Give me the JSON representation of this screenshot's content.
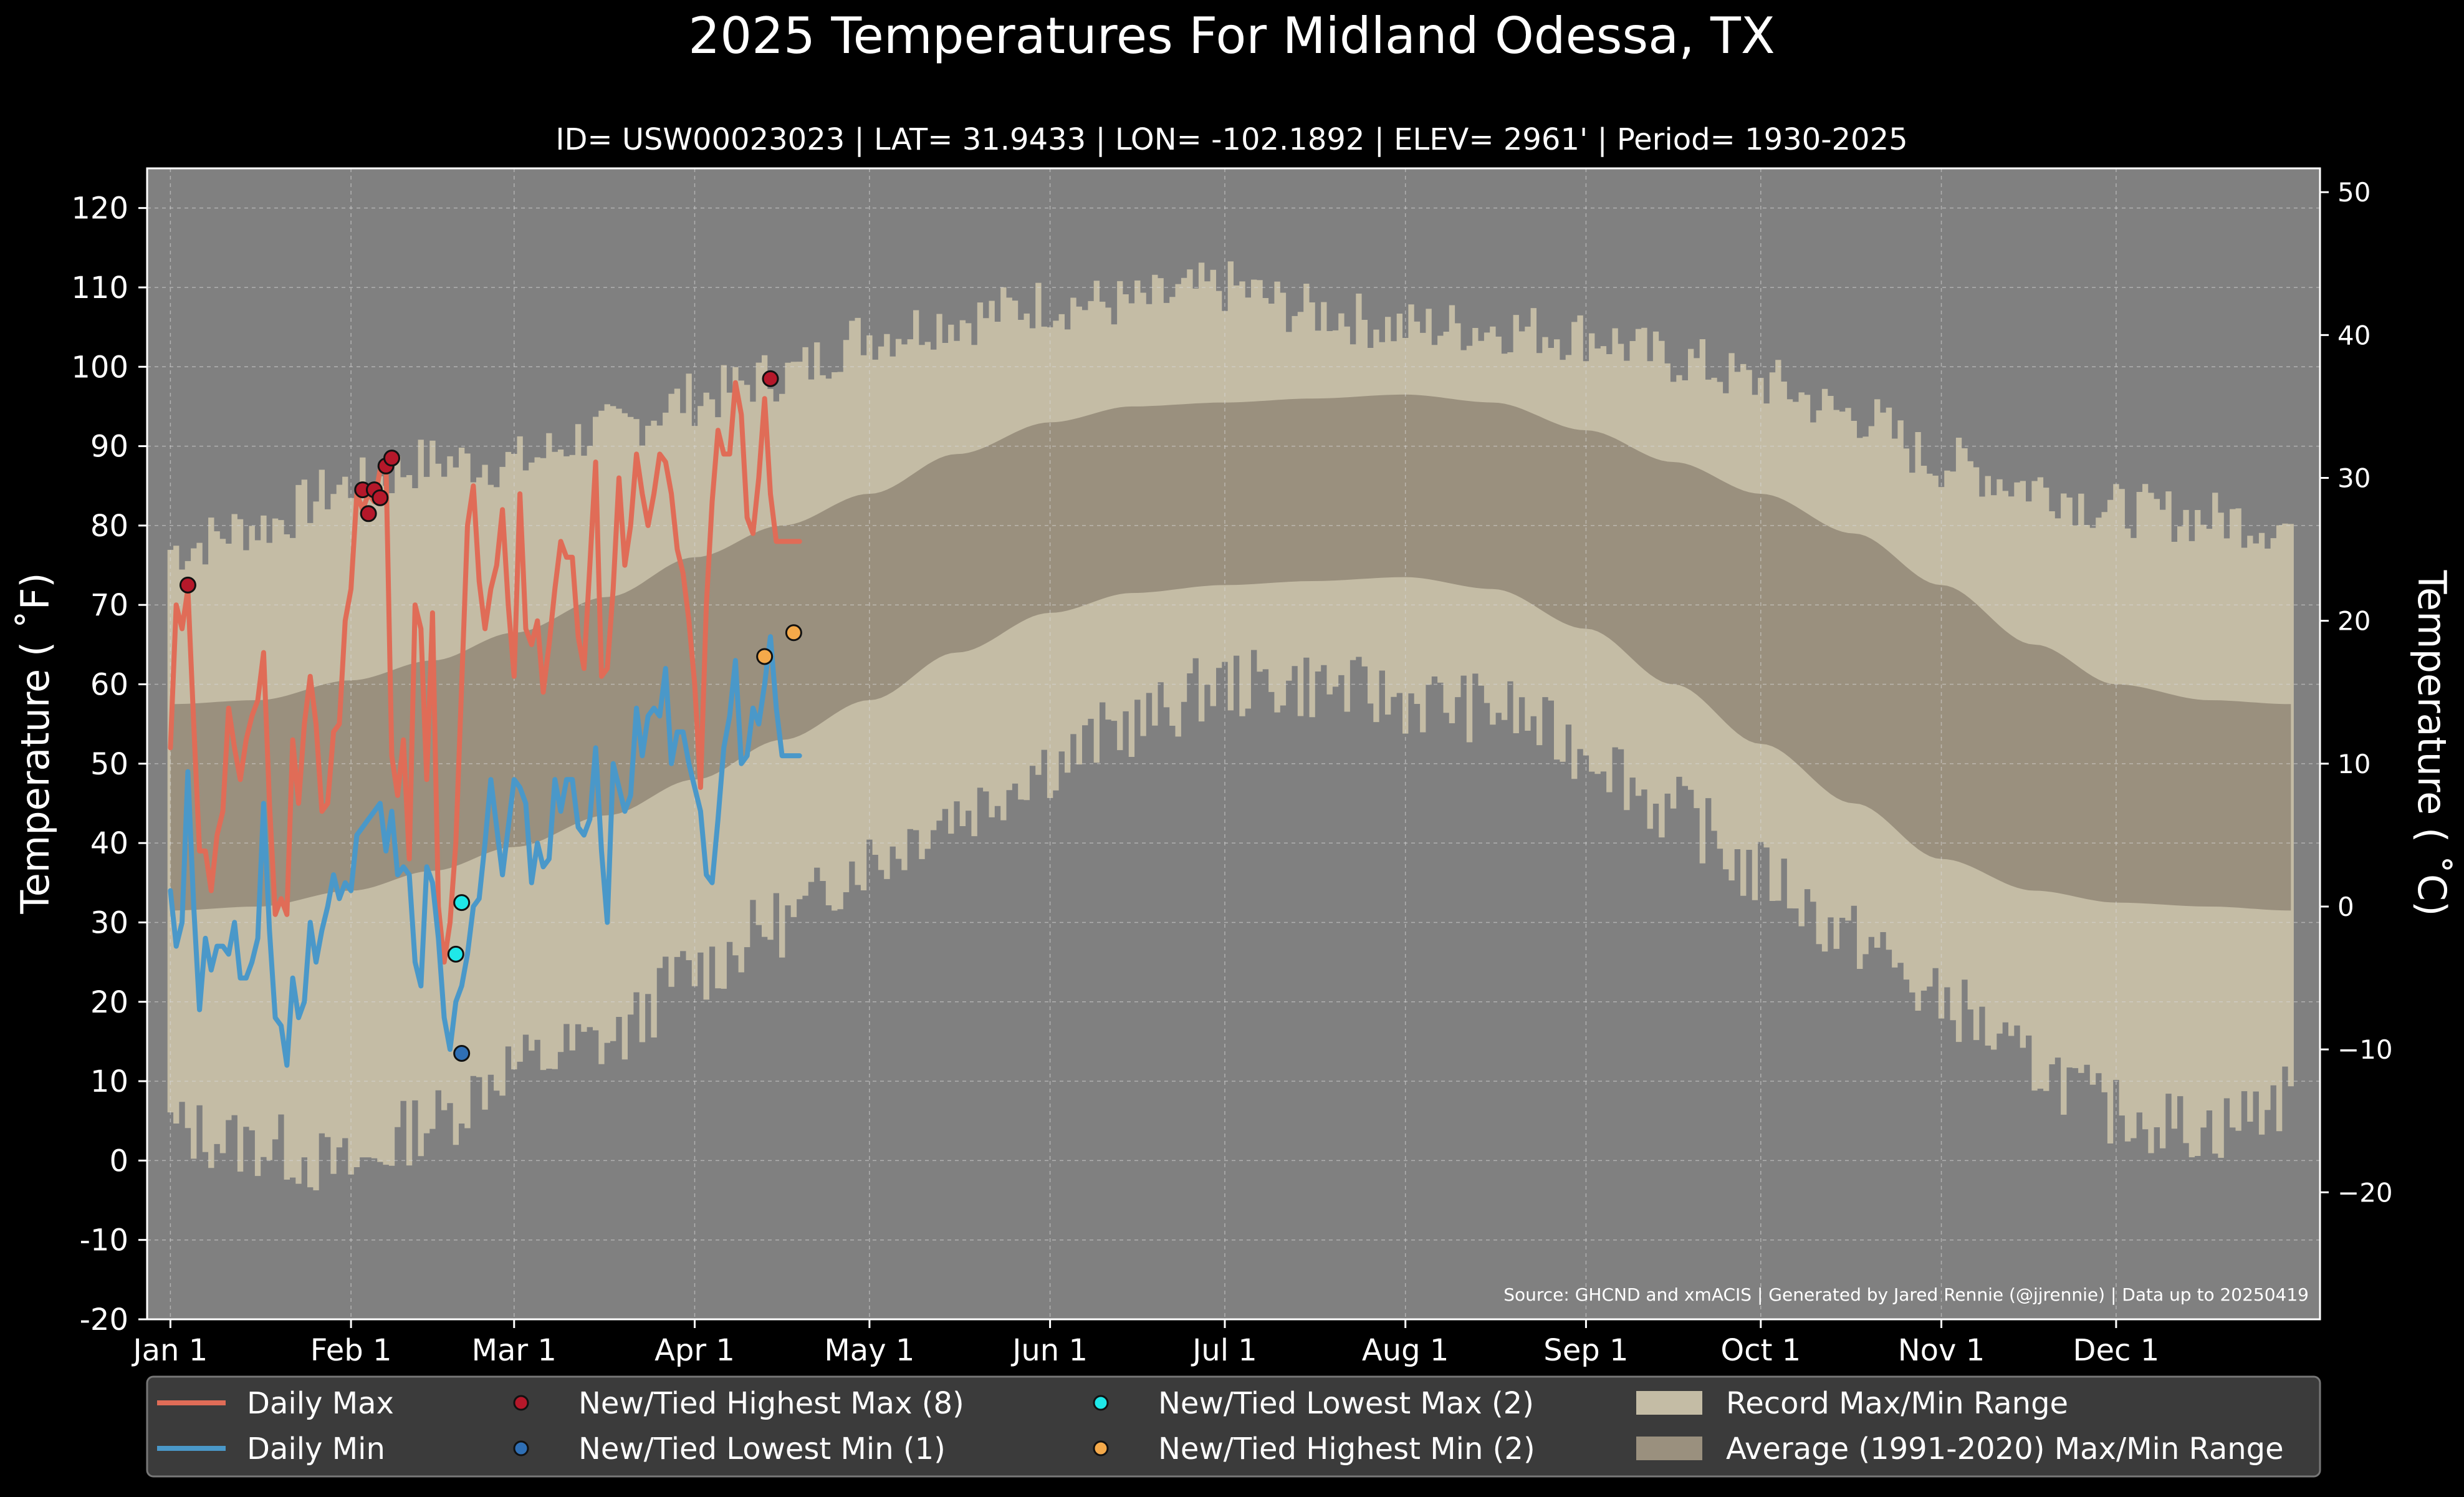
{
  "chart_data": {
    "type": "line",
    "title": "2025 Temperatures For Midland Odessa, TX",
    "subtitle": "ID= USW00023023 | LAT= 31.9433 | LON= -102.1892 | ELEV= 2961' | Period= 1930-2025",
    "ylabel": "Temperature ($^\\circ$F)",
    "ylabel_display": "Temperature ( ˚F)",
    "ylabel_right": "Temperature ( ˚C)",
    "source": "Source: GHCND and xmACIS | Generated by Jared Rennie (@jjrennie) | Data up to 20250419",
    "ylim": [
      -20,
      125
    ],
    "yticks": [
      -20,
      -10,
      0,
      10,
      20,
      30,
      40,
      50,
      60,
      70,
      80,
      90,
      100,
      110,
      120
    ],
    "yticks_c": [
      -20,
      -10,
      0,
      10,
      20,
      30,
      40,
      50
    ],
    "xlim_days": [
      -4,
      369
    ],
    "month_ticks": [
      {
        "label": "Jan 1",
        "day": 0
      },
      {
        "label": "Feb 1",
        "day": 31
      },
      {
        "label": "Mar 1",
        "day": 59
      },
      {
        "label": "Apr 1",
        "day": 90
      },
      {
        "label": "May 1",
        "day": 120
      },
      {
        "label": "Jun 1",
        "day": 151
      },
      {
        "label": "Jul 1",
        "day": 181
      },
      {
        "label": "Aug 1",
        "day": 212
      },
      {
        "label": "Sep 1",
        "day": 243
      },
      {
        "label": "Oct 1",
        "day": 273
      },
      {
        "label": "Nov 1",
        "day": 304
      },
      {
        "label": "Dec 1",
        "day": 334
      }
    ],
    "record_max_keypoints": [
      [
        0,
        77
      ],
      [
        15,
        80
      ],
      [
        31,
        85
      ],
      [
        45,
        88
      ],
      [
        59,
        88
      ],
      [
        75,
        92
      ],
      [
        90,
        96
      ],
      [
        105,
        99
      ],
      [
        120,
        104
      ],
      [
        135,
        106
      ],
      [
        151,
        108
      ],
      [
        165,
        108
      ],
      [
        181,
        110
      ],
      [
        196,
        107
      ],
      [
        212,
        105
      ],
      [
        227,
        105
      ],
      [
        243,
        104
      ],
      [
        258,
        101
      ],
      [
        273,
        98
      ],
      [
        289,
        94
      ],
      [
        304,
        88
      ],
      [
        320,
        85
      ],
      [
        334,
        82
      ],
      [
        350,
        81
      ],
      [
        364,
        80
      ]
    ],
    "record_min_keypoints": [
      [
        0,
        4
      ],
      [
        15,
        2
      ],
      [
        31,
        -1
      ],
      [
        45,
        5
      ],
      [
        59,
        12
      ],
      [
        75,
        15
      ],
      [
        90,
        24
      ],
      [
        105,
        30
      ],
      [
        120,
        38
      ],
      [
        135,
        44
      ],
      [
        151,
        50
      ],
      [
        165,
        55
      ],
      [
        181,
        60
      ],
      [
        196,
        60
      ],
      [
        212,
        58
      ],
      [
        227,
        57
      ],
      [
        243,
        52
      ],
      [
        258,
        44
      ],
      [
        273,
        36
      ],
      [
        289,
        28
      ],
      [
        304,
        20
      ],
      [
        320,
        12
      ],
      [
        334,
        6
      ],
      [
        350,
        4
      ],
      [
        364,
        8
      ]
    ],
    "avg_max_keypoints": [
      [
        0,
        57.5
      ],
      [
        15,
        58
      ],
      [
        31,
        60.5
      ],
      [
        45,
        63
      ],
      [
        59,
        66.5
      ],
      [
        75,
        71
      ],
      [
        90,
        76
      ],
      [
        105,
        80
      ],
      [
        120,
        84
      ],
      [
        135,
        89
      ],
      [
        151,
        93
      ],
      [
        165,
        95
      ],
      [
        181,
        95.5
      ],
      [
        196,
        96
      ],
      [
        212,
        96.5
      ],
      [
        227,
        95.5
      ],
      [
        243,
        92
      ],
      [
        258,
        88
      ],
      [
        273,
        84
      ],
      [
        289,
        79
      ],
      [
        304,
        72.5
      ],
      [
        320,
        65
      ],
      [
        334,
        60
      ],
      [
        350,
        58
      ],
      [
        364,
        57.5
      ]
    ],
    "avg_min_keypoints": [
      [
        0,
        31.5
      ],
      [
        15,
        32
      ],
      [
        31,
        34
      ],
      [
        45,
        36.5
      ],
      [
        59,
        39.5
      ],
      [
        75,
        43.5
      ],
      [
        90,
        48
      ],
      [
        105,
        53
      ],
      [
        120,
        58
      ],
      [
        135,
        64
      ],
      [
        151,
        69
      ],
      [
        165,
        71.5
      ],
      [
        181,
        72.5
      ],
      [
        196,
        73
      ],
      [
        212,
        73.5
      ],
      [
        227,
        72
      ],
      [
        243,
        67
      ],
      [
        258,
        60
      ],
      [
        273,
        52.5
      ],
      [
        289,
        45
      ],
      [
        304,
        38
      ],
      [
        320,
        34
      ],
      [
        334,
        32.5
      ],
      [
        350,
        32
      ],
      [
        364,
        31.5
      ]
    ],
    "series": [
      {
        "name": "Daily Max",
        "color": "#e06c57",
        "x": [
          0,
          1,
          2,
          3,
          4,
          5,
          6,
          7,
          8,
          9,
          10,
          11,
          12,
          13,
          14,
          15,
          16,
          17,
          18,
          19,
          20,
          21,
          22,
          23,
          24,
          25,
          26,
          27,
          28,
          29,
          30,
          31,
          32,
          33,
          34,
          35,
          36,
          37,
          38,
          39,
          40,
          41,
          42,
          43,
          44,
          45,
          46,
          47,
          48,
          49,
          50,
          51,
          52,
          53,
          54,
          55,
          56,
          57,
          58,
          59,
          60,
          61,
          62,
          63,
          64,
          65,
          66,
          67,
          68,
          69,
          70,
          71,
          72,
          73,
          74,
          75,
          76,
          77,
          78,
          79,
          80,
          81,
          82,
          83,
          84,
          85,
          86,
          87,
          88,
          89,
          90,
          91,
          92,
          93,
          94,
          95,
          96,
          97,
          98,
          99,
          100,
          101,
          102,
          103,
          104,
          105,
          106,
          107,
          108
        ],
        "values": [
          52,
          70,
          67,
          72,
          55,
          39,
          39,
          34,
          41,
          44,
          57,
          52,
          48,
          53,
          56,
          58,
          64,
          45,
          31,
          33,
          31,
          53,
          45,
          55,
          61,
          55,
          44,
          45,
          54,
          55,
          68,
          72,
          84,
          82,
          84,
          83,
          87,
          88,
          51,
          46,
          53,
          38,
          70,
          67,
          48,
          69,
          32,
          25,
          30,
          40,
          60,
          80,
          85,
          73,
          67,
          72,
          75,
          82,
          70,
          61,
          84,
          67,
          65,
          68,
          59,
          65,
          72,
          78,
          76,
          76,
          66,
          62,
          75,
          88,
          61,
          62,
          72,
          86,
          75,
          80,
          89,
          84,
          80,
          84,
          89,
          88,
          84,
          77,
          74,
          68,
          60,
          47,
          70,
          83,
          92,
          89,
          89,
          98,
          94,
          81,
          79,
          86,
          96,
          84,
          78,
          78,
          78,
          78,
          78
        ]
      },
      {
        "name": "Daily Min",
        "color": "#4a98c9",
        "x": [
          0,
          1,
          2,
          3,
          4,
          5,
          6,
          7,
          8,
          9,
          10,
          11,
          12,
          13,
          14,
          15,
          16,
          17,
          18,
          19,
          20,
          21,
          22,
          23,
          24,
          25,
          26,
          27,
          28,
          29,
          30,
          31,
          32,
          33,
          34,
          35,
          36,
          37,
          38,
          39,
          40,
          41,
          42,
          43,
          44,
          45,
          46,
          47,
          48,
          49,
          50,
          51,
          52,
          53,
          54,
          55,
          56,
          57,
          58,
          59,
          60,
          61,
          62,
          63,
          64,
          65,
          66,
          67,
          68,
          69,
          70,
          71,
          72,
          73,
          74,
          75,
          76,
          77,
          78,
          79,
          80,
          81,
          82,
          83,
          84,
          85,
          86,
          87,
          88,
          89,
          90,
          91,
          92,
          93,
          94,
          95,
          96,
          97,
          98,
          99,
          100,
          101,
          102,
          103,
          104,
          105,
          106,
          107,
          108
        ],
        "values": [
          34,
          27,
          30,
          49,
          32,
          19,
          28,
          24,
          27,
          27,
          26,
          30,
          23,
          23,
          25,
          28,
          45,
          29,
          18,
          17,
          12,
          23,
          18,
          20,
          30,
          25,
          29,
          32,
          36,
          33,
          35,
          34,
          41,
          42,
          43,
          44,
          45,
          39,
          44,
          36,
          37,
          36,
          25,
          22,
          37,
          35,
          28,
          18,
          14,
          20,
          22,
          26,
          32,
          33,
          40,
          48,
          42,
          36,
          42,
          48,
          47,
          45,
          35,
          40,
          37,
          38,
          48,
          44,
          48,
          48,
          42,
          41,
          43,
          52,
          39,
          30,
          50,
          47,
          44,
          46,
          57,
          51,
          56,
          57,
          56,
          62,
          50,
          54,
          54,
          50,
          47,
          44,
          36,
          35,
          43,
          52,
          56,
          63,
          50,
          51,
          57,
          55,
          60,
          66,
          57,
          51,
          51,
          51,
          51
        ]
      }
    ],
    "markers": [
      {
        "name": "New/Tied Highest Max (8)",
        "color": "#b5182a",
        "points": [
          [
            3,
            72.5
          ],
          [
            33,
            84.5
          ],
          [
            34,
            81.5
          ],
          [
            35,
            84.5
          ],
          [
            36,
            83.5
          ],
          [
            37,
            87.5
          ],
          [
            38,
            88.5
          ],
          [
            103,
            98.5
          ]
        ]
      },
      {
        "name": "New/Tied Lowest Min (1)",
        "color": "#2f6fb5",
        "points": [
          [
            50,
            13.5
          ]
        ]
      },
      {
        "name": "New/Tied Lowest Max (2)",
        "color": "#1fe8e8",
        "points": [
          [
            49,
            26
          ],
          [
            50,
            32.5
          ]
        ]
      },
      {
        "name": "New/Tied Highest Min (2)",
        "color": "#f4a94a",
        "points": [
          [
            102,
            63.5
          ],
          [
            107,
            66.5
          ]
        ]
      }
    ],
    "legend": [
      {
        "label": "Daily Max",
        "kind": "line",
        "color": "#e06c57"
      },
      {
        "label": "Daily Min",
        "kind": "line",
        "color": "#4a98c9"
      },
      {
        "label": "New/Tied Highest Max (8)",
        "kind": "marker",
        "color": "#b5182a"
      },
      {
        "label": "New/Tied Lowest Min (1)",
        "kind": "marker",
        "color": "#2f6fb5"
      },
      {
        "label": "New/Tied Lowest Max (2)",
        "kind": "marker",
        "color": "#1fe8e8"
      },
      {
        "label": "New/Tied Highest Min (2)",
        "kind": "marker",
        "color": "#f4a94a"
      },
      {
        "label": "Record Max/Min Range",
        "kind": "patch",
        "color": "#c4bca5"
      },
      {
        "label": "Average (1991-2020) Max/Min Range",
        "kind": "patch",
        "color": "#9a907e"
      }
    ],
    "grid": true,
    "legend_placement": "bottom",
    "colors": {
      "background": "#000000",
      "plot_bg": "#808080",
      "record_band": "#c4bca5",
      "avg_band": "#9a907e"
    }
  }
}
